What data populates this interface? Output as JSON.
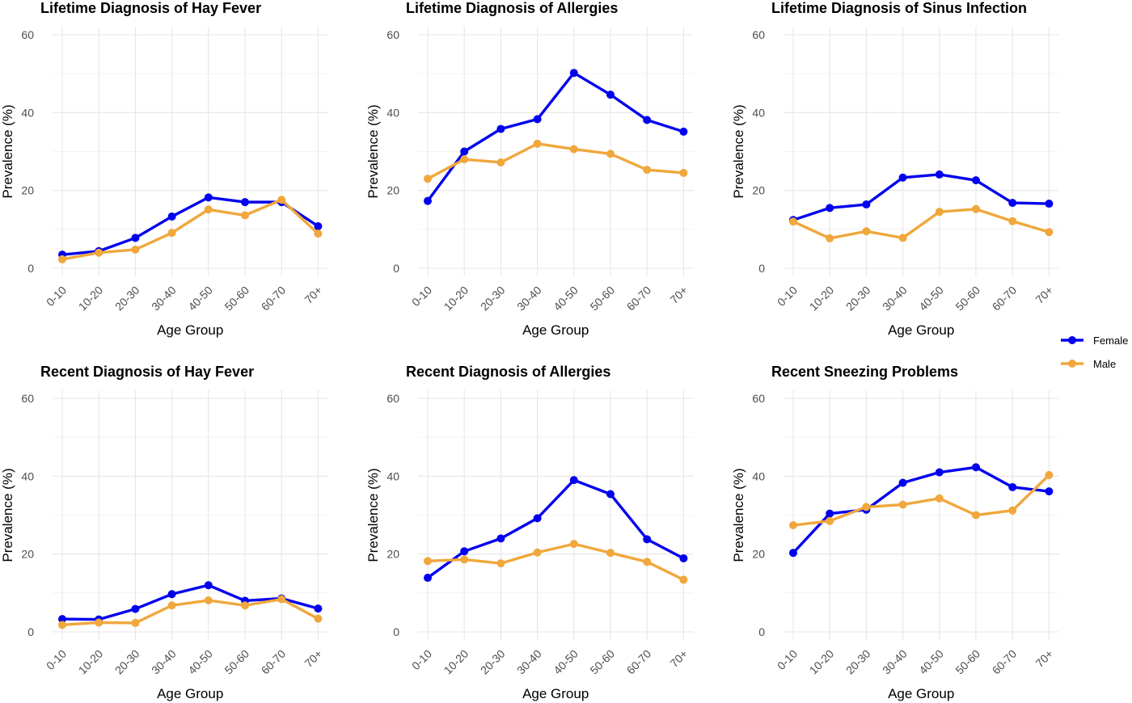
{
  "colors": {
    "female": "#0000ee",
    "male": "#f0a73c"
  },
  "legend": {
    "items": [
      {
        "label": "Female",
        "color_key": "female"
      },
      {
        "label": "Male",
        "color_key": "male"
      }
    ]
  },
  "chart_data": [
    {
      "type": "line",
      "title": "Lifetime Diagnosis of Hay Fever",
      "xlabel": "Age Group",
      "ylabel": "Prevalence (%)",
      "categories": [
        "0-10",
        "10-20",
        "20-30",
        "30-40",
        "40-50",
        "50-60",
        "60-70",
        "70+"
      ],
      "yticks": [
        0,
        20,
        40,
        60
      ],
      "ylim": [
        0,
        60
      ],
      "series": [
        {
          "name": "Female",
          "values": [
            3.5,
            4.4,
            7.8,
            13.3,
            18.2,
            17.0,
            17.0,
            10.8
          ]
        },
        {
          "name": "Male",
          "values": [
            2.3,
            4.0,
            4.8,
            9.1,
            15.1,
            13.6,
            17.6,
            8.9
          ]
        }
      ]
    },
    {
      "type": "line",
      "title": "Lifetime Diagnosis of Allergies",
      "xlabel": "Age Group",
      "ylabel": "Prevalence (%)",
      "categories": [
        "0-10",
        "10-20",
        "20-30",
        "30-40",
        "40-50",
        "50-60",
        "60-70",
        "70+"
      ],
      "yticks": [
        0,
        20,
        40,
        60
      ],
      "ylim": [
        0,
        60
      ],
      "series": [
        {
          "name": "Female",
          "values": [
            17.3,
            30.0,
            35.8,
            38.3,
            50.2,
            44.6,
            38.1,
            35.1
          ]
        },
        {
          "name": "Male",
          "values": [
            23.0,
            28.0,
            27.2,
            32.0,
            30.6,
            29.4,
            25.3,
            24.5
          ]
        }
      ]
    },
    {
      "type": "line",
      "title": "Lifetime Diagnosis of Sinus Infection",
      "xlabel": "Age Group",
      "ylabel": "Prevalence (%)",
      "categories": [
        "0-10",
        "10-20",
        "20-30",
        "30-40",
        "40-50",
        "50-60",
        "60-70",
        "70+"
      ],
      "yticks": [
        0,
        20,
        40,
        60
      ],
      "ylim": [
        0,
        60
      ],
      "series": [
        {
          "name": "Female",
          "values": [
            12.4,
            15.5,
            16.4,
            23.3,
            24.1,
            22.6,
            16.8,
            16.6
          ]
        },
        {
          "name": "Male",
          "values": [
            12.0,
            7.7,
            9.5,
            7.8,
            14.5,
            15.2,
            12.1,
            9.3
          ]
        }
      ]
    },
    {
      "type": "line",
      "title": "Recent Diagnosis of Hay Fever",
      "xlabel": "Age Group",
      "ylabel": "Prevalence (%)",
      "categories": [
        "0-10",
        "10-20",
        "20-30",
        "30-40",
        "40-50",
        "50-60",
        "60-70",
        "70+"
      ],
      "yticks": [
        0,
        20,
        40,
        60
      ],
      "ylim": [
        0,
        60
      ],
      "series": [
        {
          "name": "Female",
          "values": [
            3.3,
            3.2,
            5.9,
            9.7,
            12.0,
            8.0,
            8.6,
            6.0
          ]
        },
        {
          "name": "Male",
          "values": [
            1.8,
            2.4,
            2.3,
            6.8,
            8.1,
            6.8,
            8.4,
            3.4
          ]
        }
      ]
    },
    {
      "type": "line",
      "title": "Recent Diagnosis of Allergies",
      "xlabel": "Age Group",
      "ylabel": "Prevalence (%)",
      "categories": [
        "0-10",
        "10-20",
        "20-30",
        "30-40",
        "40-50",
        "50-60",
        "60-70",
        "70+"
      ],
      "yticks": [
        0,
        20,
        40,
        60
      ],
      "ylim": [
        0,
        60
      ],
      "series": [
        {
          "name": "Female",
          "values": [
            13.9,
            20.7,
            24.0,
            29.2,
            39.0,
            35.4,
            23.8,
            18.9
          ]
        },
        {
          "name": "Male",
          "values": [
            18.2,
            18.6,
            17.6,
            20.4,
            22.6,
            20.3,
            18.0,
            13.4
          ]
        }
      ]
    },
    {
      "type": "line",
      "title": "Recent Sneezing Problems",
      "xlabel": "Age Group",
      "ylabel": "Prevalence (%)",
      "categories": [
        "0-10",
        "10-20",
        "20-30",
        "30-40",
        "40-50",
        "50-60",
        "60-70",
        "70+"
      ],
      "yticks": [
        0,
        20,
        40,
        60
      ],
      "ylim": [
        0,
        60
      ],
      "series": [
        {
          "name": "Female",
          "values": [
            20.3,
            30.4,
            31.4,
            38.3,
            41.0,
            42.3,
            37.2,
            36.1
          ]
        },
        {
          "name": "Male",
          "values": [
            27.4,
            28.5,
            32.1,
            32.7,
            34.3,
            30.0,
            31.2,
            40.3
          ]
        }
      ]
    }
  ]
}
